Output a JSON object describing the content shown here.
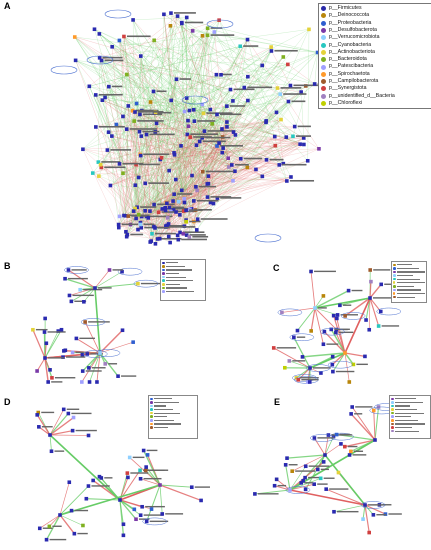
{
  "panels": [
    {
      "label": "A"
    },
    {
      "label": "B"
    },
    {
      "label": "C"
    },
    {
      "label": "D"
    },
    {
      "label": "E"
    }
  ],
  "legend": {
    "items": [
      {
        "label": "p__Firmicutes",
        "color": "#2a2aa8"
      },
      {
        "label": "p__Deinococcota",
        "color": "#b8860b"
      },
      {
        "label": "p__Proteobacteria",
        "color": "#2f5fd0"
      },
      {
        "label": "p__Desulfobacterota",
        "color": "#7a3aa8"
      },
      {
        "label": "p__Verrucomicrobiota",
        "color": "#8fd0ff"
      },
      {
        "label": "p__Cyanobacteria",
        "color": "#28c7c0"
      },
      {
        "label": "p__Actinobacteriota",
        "color": "#e3d23a"
      },
      {
        "label": "p__Bacteroidota",
        "color": "#7fb020"
      },
      {
        "label": "p__Patescibacteria",
        "color": "#a0a0ff"
      },
      {
        "label": "p__Spirochaetota",
        "color": "#ff9a2a"
      },
      {
        "label": "p__Campilobacterota",
        "color": "#a05a2c"
      },
      {
        "label": "p__Synergistota",
        "color": "#d04040"
      },
      {
        "label": "p__unidentified_d__Bacteria",
        "color": "#a080c0"
      },
      {
        "label": "p__Chloroflexi",
        "color": "#c0d000"
      }
    ]
  },
  "colors": {
    "positive_edge": "#e06060",
    "negative_edge": "#66cc66",
    "node_fill": "#2a2ab0"
  }
}
